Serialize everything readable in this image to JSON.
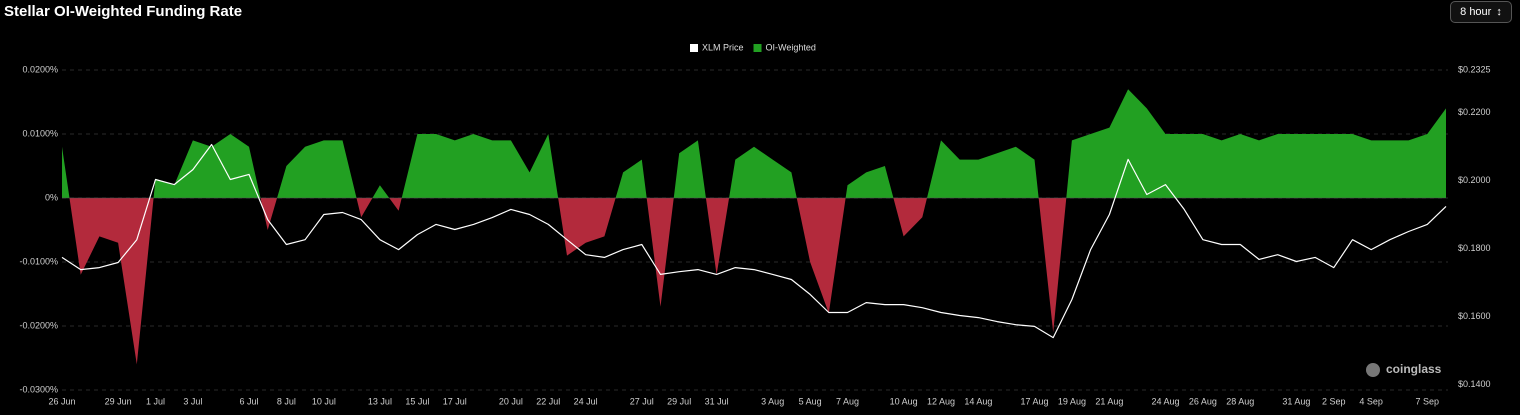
{
  "title": "Stellar OI-Weighted Funding Rate",
  "controls": {
    "interval": "8 hour"
  },
  "watermark": "coinglass",
  "chart_data": {
    "type": "area-line",
    "categories": [
      "26 Jun",
      null,
      null,
      "29 Jun",
      null,
      "1 Jul",
      null,
      "3 Jul",
      null,
      null,
      "6 Jul",
      null,
      "8 Jul",
      null,
      "10 Jul",
      null,
      null,
      "13 Jul",
      null,
      "15 Jul",
      null,
      "17 Jul",
      null,
      null,
      "20 Jul",
      null,
      "22 Jul",
      null,
      "24 Jul",
      null,
      null,
      "27 Jul",
      null,
      "29 Jul",
      null,
      "31 Jul",
      null,
      null,
      "3 Aug",
      null,
      "5 Aug",
      null,
      "7 Aug",
      null,
      null,
      "10 Aug",
      null,
      "12 Aug",
      null,
      "14 Aug",
      null,
      null,
      "17 Aug",
      null,
      "19 Aug",
      null,
      "21 Aug",
      null,
      null,
      "24 Aug",
      null,
      "26 Aug",
      null,
      "28 Aug",
      null,
      null,
      "31 Aug",
      null,
      "2 Sep",
      null,
      "4 Sep",
      null,
      null,
      "7 Sep",
      null
    ],
    "series": [
      {
        "name": "XLM Price",
        "color": "#ffffff",
        "axis": "y2",
        "kind": "line",
        "values": [
          0.1774,
          0.1738,
          0.1744,
          0.1759,
          0.1826,
          0.2003,
          0.1988,
          0.2032,
          0.2106,
          0.2003,
          0.2018,
          0.1885,
          0.1812,
          0.1826,
          0.19,
          0.1906,
          0.1885,
          0.1826,
          0.1797,
          0.1841,
          0.1871,
          0.1856,
          0.1871,
          0.1891,
          0.1915,
          0.19,
          0.1871,
          0.1826,
          0.1782,
          0.1774,
          0.1797,
          0.1812,
          0.1724,
          0.1732,
          0.1738,
          0.1724,
          0.1744,
          0.1738,
          0.1724,
          0.1709,
          0.1665,
          0.1612,
          0.1612,
          0.1641,
          0.1635,
          0.1635,
          0.1626,
          0.1612,
          0.1603,
          0.1597,
          0.1585,
          0.1576,
          0.1571,
          0.1538,
          0.165,
          0.1797,
          0.19,
          0.2062,
          0.1959,
          0.1988,
          0.1915,
          0.1826,
          0.1812,
          0.1812,
          0.1768,
          0.1782,
          0.1762,
          0.1774,
          0.1744,
          0.1826,
          0.1797,
          0.1826,
          0.185,
          0.1871,
          0.1924
        ]
      },
      {
        "name": "OI-Weighted",
        "color": "#22a022",
        "negative_color": "#b32a3c",
        "kind": "area",
        "values": [
          0.008,
          -0.012,
          -0.006,
          -0.007,
          -0.026,
          0.003,
          0.002,
          0.009,
          0.008,
          0.01,
          0.008,
          -0.005,
          0.005,
          0.008,
          0.009,
          0.009,
          -0.003,
          0.002,
          -0.002,
          0.01,
          0.01,
          0.009,
          0.01,
          0.009,
          0.009,
          0.004,
          0.01,
          -0.009,
          -0.007,
          -0.006,
          0.004,
          0.006,
          -0.017,
          0.007,
          0.009,
          -0.012,
          0.006,
          0.008,
          0.006,
          0.004,
          -0.01,
          -0.018,
          0.002,
          0.004,
          0.005,
          -0.006,
          -0.003,
          0.009,
          0.006,
          0.006,
          0.007,
          0.008,
          0.006,
          -0.021,
          0.009,
          0.01,
          0.011,
          0.017,
          0.014,
          0.01,
          0.01,
          0.01,
          0.009,
          0.01,
          0.009,
          0.01,
          0.01,
          0.01,
          0.01,
          0.01,
          0.009,
          0.009,
          0.009,
          0.01,
          0.014
        ]
      }
    ],
    "ylim": [
      -0.03,
      0.02
    ],
    "yticks": [
      {
        "value": 0.02,
        "label": "0.0200%"
      },
      {
        "value": 0.01,
        "label": "0.0100%"
      },
      {
        "value": 0,
        "label": "0%"
      },
      {
        "value": -0.01,
        "label": "-0.0100%"
      },
      {
        "value": -0.02,
        "label": "-0.0200%"
      },
      {
        "value": -0.03,
        "label": "-0.0300%"
      }
    ],
    "y2lim": [
      0.1384,
      0.2325
    ],
    "y2ticks": [
      {
        "value": 0.2325,
        "label": "$0.2325"
      },
      {
        "value": 0.22,
        "label": "$0.2200"
      },
      {
        "value": 0.2,
        "label": "$0.2000"
      },
      {
        "value": 0.18,
        "label": "$0.1800"
      },
      {
        "value": 0.16,
        "label": "$0.1600"
      },
      {
        "value": 0.14,
        "label": "$0.1400"
      }
    ],
    "grid": true,
    "legend": "top"
  }
}
